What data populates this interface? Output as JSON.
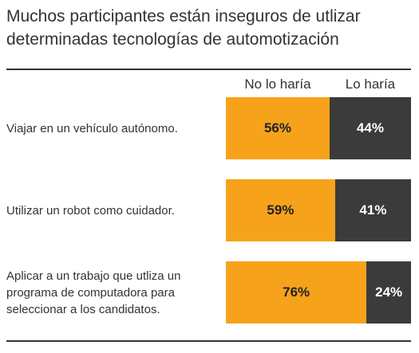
{
  "chart_data": {
    "type": "bar",
    "orientation": "horizontal",
    "stacked": true,
    "title": "Muchos participantes están inseguros de utlizar determinadas tecnologías de automotización",
    "categories": [
      "Viajar en un vehículo autónomo.",
      "Utilizar un robot como cuidador.",
      "Aplicar a un trabajo que utliza un programa de computadora para seleccionar a los candidatos."
    ],
    "xlim": [
      0,
      100
    ],
    "series": [
      {
        "name": "No lo haría",
        "color": "#f7a21b",
        "values": [
          56,
          59,
          76
        ],
        "value_labels": [
          "56%",
          "59%",
          "76%"
        ]
      },
      {
        "name": "Lo haría",
        "color": "#3b3b3b",
        "values": [
          44,
          41,
          24
        ],
        "value_labels": [
          "44%",
          "41%",
          "24%"
        ]
      }
    ]
  }
}
